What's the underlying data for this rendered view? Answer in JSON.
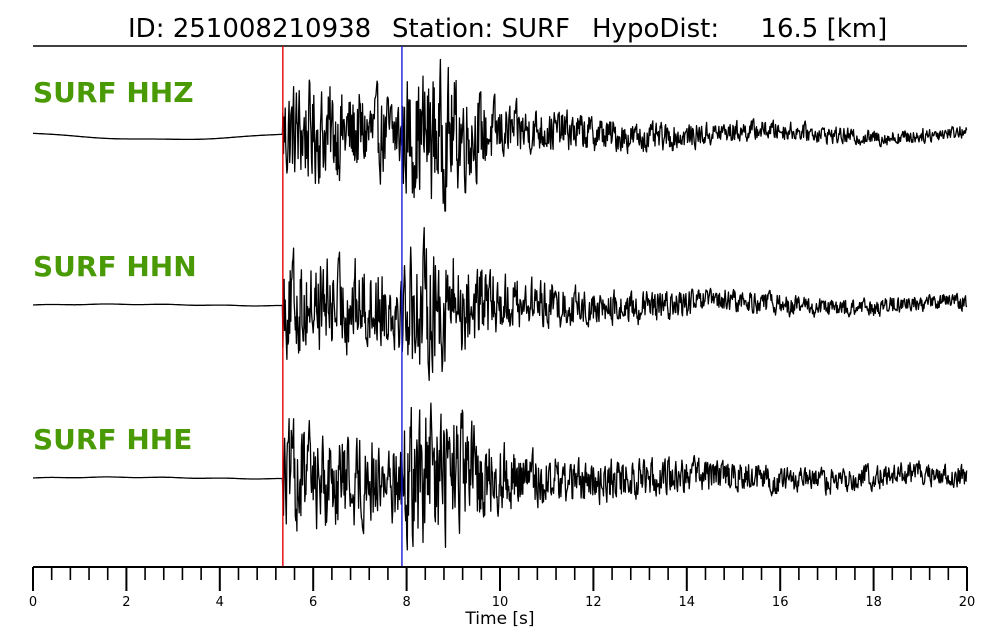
{
  "title": {
    "id_text": "ID: 251008210938",
    "station_text": "Station: SURF",
    "dist_text": "HypoDist:     16.5 [km]"
  },
  "chart_data": {
    "type": "line",
    "xlabel": "Time [s]",
    "xlim": [
      0,
      20
    ],
    "xticks": [
      0,
      2,
      4,
      6,
      8,
      10,
      12,
      14,
      16,
      18,
      20
    ],
    "minor_tick_step": 0.4,
    "grid": false,
    "p_pick_time": 5.35,
    "s_pick_time": 7.9,
    "p_pick_color": "#e8000b",
    "s_pick_color": "#1a1ad6",
    "trace_color": "#000000",
    "label_color": "#4a9a06",
    "series": [
      {
        "name": "SURF HHZ",
        "pre_event": "slow-wave",
        "peak_amplitude_time": 8.8,
        "coda_end_amplitude": 0.08
      },
      {
        "name": "SURF HHN",
        "pre_event": "flat",
        "peak_amplitude_time": 8.8,
        "coda_end_amplitude": 0.1
      },
      {
        "name": "SURF HHE",
        "pre_event": "flat",
        "peak_amplitude_time": 8.8,
        "coda_end_amplitude": 0.14
      }
    ]
  }
}
